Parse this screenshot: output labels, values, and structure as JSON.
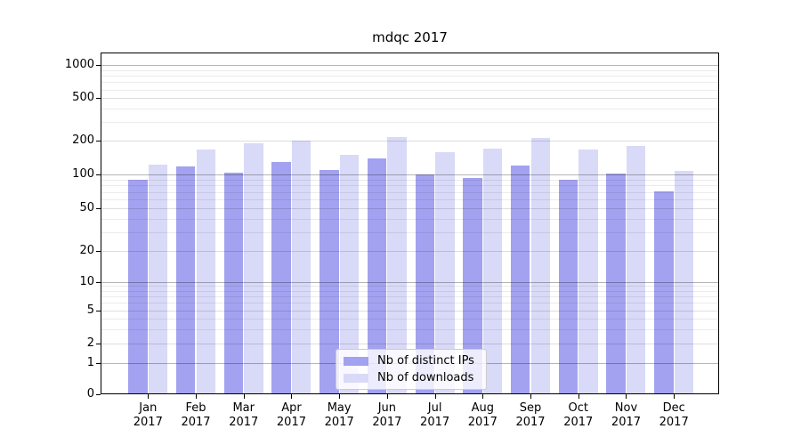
{
  "chart_data": {
    "type": "bar",
    "title": "mdqc 2017",
    "xlabel": "",
    "ylabel": "",
    "categories": [
      "Jan 2017",
      "Feb 2017",
      "Mar 2017",
      "Apr 2017",
      "May 2017",
      "Jun 2017",
      "Jul 2017",
      "Aug 2017",
      "Sep 2017",
      "Oct 2017",
      "Nov 2017",
      "Dec 2017"
    ],
    "series": [
      {
        "name": "Nb of distinct IPs",
        "color": "#a2a2f0",
        "values": [
          90,
          118,
          104,
          130,
          110,
          140,
          100,
          93,
          120,
          89,
          101,
          71
        ]
      },
      {
        "name": "Nb of downloads",
        "color": "#d9d9f8",
        "values": [
          122,
          166,
          192,
          200,
          150,
          217,
          157,
          169,
          211,
          166,
          179,
          108
        ]
      }
    ],
    "yscale": "symlog",
    "y_ticks": [
      0,
      1,
      2,
      5,
      10,
      20,
      50,
      100,
      200,
      500,
      1000
    ],
    "ylim": [
      0,
      1300
    ],
    "grid": "horizontal, major and minor",
    "legend_position": "lower center"
  },
  "colors": {
    "background": "#ffffff",
    "axis": "#000000",
    "grid_major": "#b5b5b5",
    "grid_mid": "#dddddd",
    "grid_minor": "#ebebeb",
    "legend_border": "#cccccc"
  }
}
